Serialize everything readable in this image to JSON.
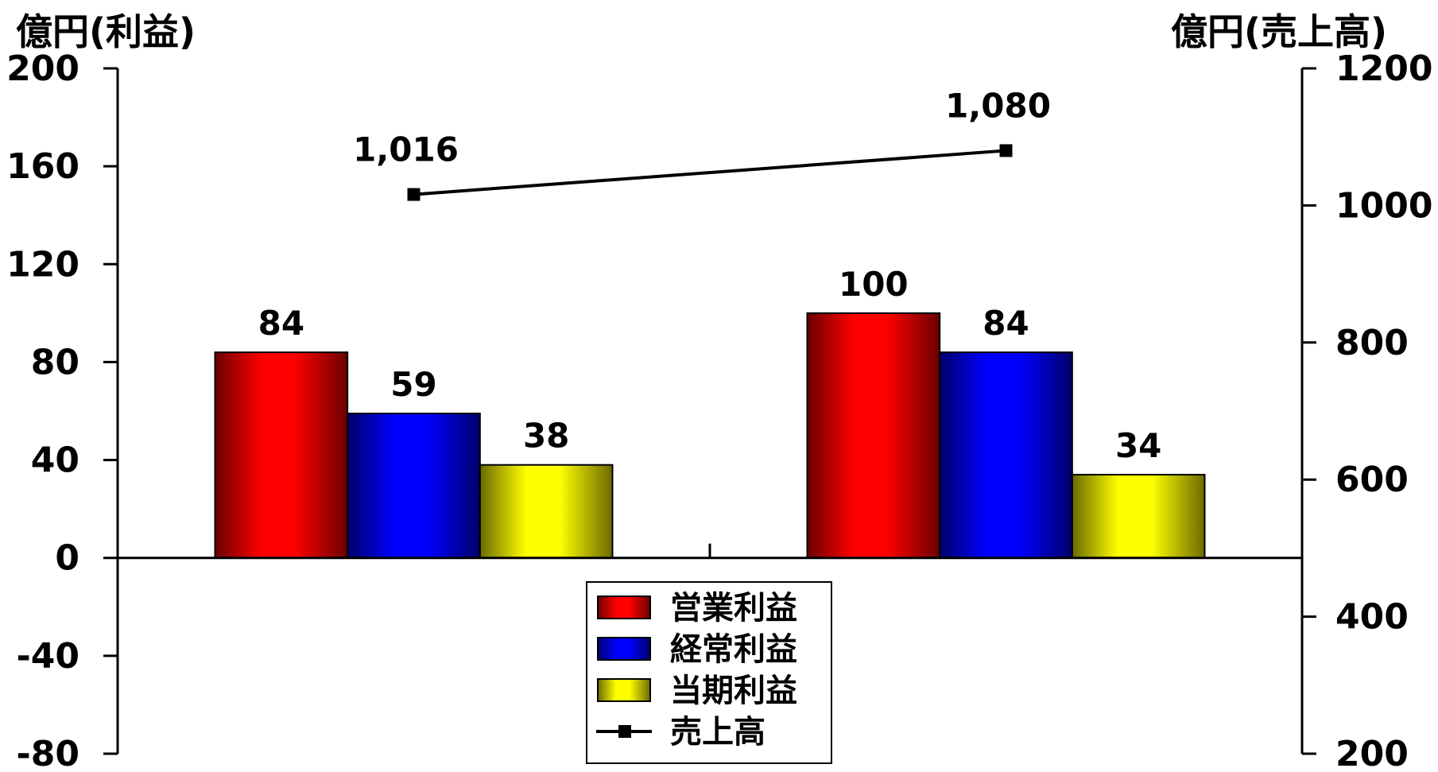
{
  "chart_data": {
    "type": "bar+line",
    "categories": [
      "",
      ""
    ],
    "series": [
      {
        "name": "営業利益",
        "kind": "bar",
        "axis": "left",
        "values": [
          84,
          100
        ],
        "labels": [
          "84",
          "100"
        ],
        "color": "#ff0000"
      },
      {
        "name": "経常利益",
        "kind": "bar",
        "axis": "left",
        "values": [
          59,
          84
        ],
        "labels": [
          "59",
          "84"
        ],
        "color": "#0000ff"
      },
      {
        "name": "当期利益",
        "kind": "bar",
        "axis": "left",
        "values": [
          38,
          34
        ],
        "labels": [
          "38",
          "34"
        ],
        "color": "#ffff00"
      },
      {
        "name": "売上高",
        "kind": "line",
        "axis": "right",
        "values": [
          1016,
          1080
        ],
        "labels": [
          "1,016",
          "1,080"
        ],
        "color": "#000000"
      }
    ],
    "ylabel_left": "億円(利益)",
    "ylabel_right": "億円(売上高)",
    "ylim_left": [
      -80,
      200
    ],
    "yticks_left": [
      "200",
      "160",
      "120",
      "80",
      "40",
      "0",
      "-40",
      "-80"
    ],
    "yticks_left_values": [
      200,
      160,
      120,
      80,
      40,
      0,
      -40,
      -80
    ],
    "ylim_right": [
      200,
      1200
    ],
    "yticks_right": [
      "1200",
      "1000",
      "800",
      "600",
      "400",
      "200"
    ],
    "yticks_right_values": [
      1200,
      1000,
      800,
      600,
      400,
      200
    ],
    "grid": false,
    "legend_position": "bottom-center"
  }
}
